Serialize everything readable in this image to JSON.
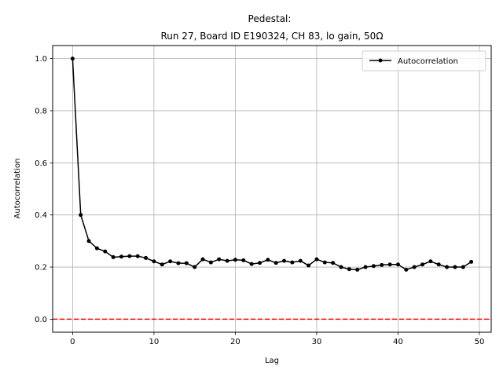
{
  "chart_data": {
    "type": "line",
    "title": "Pedestal:",
    "subtitle": "Run 27, Board ID E190324, CH 83, lo gain, 50Ω",
    "xlabel": "Lag",
    "ylabel": "Autocorrelation",
    "xlim": [
      -2.45,
      51.45
    ],
    "ylim": [
      -0.05,
      1.05
    ],
    "x_ticks": [
      0,
      10,
      20,
      30,
      40,
      50
    ],
    "x_tick_labels": [
      "0",
      "10",
      "20",
      "30",
      "40",
      "50"
    ],
    "y_ticks": [
      0.0,
      0.2,
      0.4,
      0.6,
      0.8,
      1.0
    ],
    "y_tick_labels": [
      "0.0",
      "0.2",
      "0.4",
      "0.6",
      "0.8",
      "1.0"
    ],
    "grid": true,
    "legend_position": "top-right",
    "series": [
      {
        "name": "Autocorrelation",
        "color": "#000000",
        "marker": "dot",
        "x": [
          0,
          1,
          2,
          3,
          4,
          5,
          6,
          7,
          8,
          9,
          10,
          11,
          12,
          13,
          14,
          15,
          16,
          17,
          18,
          19,
          20,
          21,
          22,
          23,
          24,
          25,
          26,
          27,
          28,
          29,
          30,
          31,
          32,
          33,
          34,
          35,
          36,
          37,
          38,
          39,
          40,
          41,
          42,
          43,
          44,
          45,
          46,
          47,
          48,
          49
        ],
        "values": [
          1.0,
          0.4,
          0.3,
          0.272,
          0.26,
          0.238,
          0.24,
          0.242,
          0.242,
          0.235,
          0.222,
          0.21,
          0.222,
          0.215,
          0.215,
          0.2,
          0.23,
          0.218,
          0.23,
          0.224,
          0.228,
          0.226,
          0.212,
          0.216,
          0.228,
          0.216,
          0.224,
          0.218,
          0.224,
          0.206,
          0.23,
          0.218,
          0.216,
          0.2,
          0.192,
          0.19,
          0.2,
          0.204,
          0.208,
          0.21,
          0.21,
          0.19,
          0.2,
          0.21,
          0.222,
          0.21,
          0.2,
          0.2,
          0.2,
          0.22
        ]
      }
    ],
    "reference_line": {
      "y": 0.0,
      "color": "#ff0000",
      "style": "dashed"
    }
  }
}
